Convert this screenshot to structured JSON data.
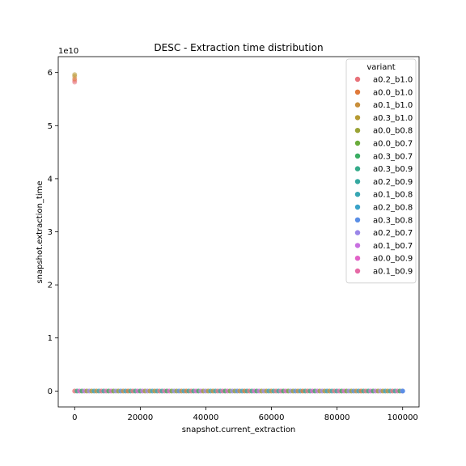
{
  "chart_data": {
    "type": "scatter",
    "title": "DESC - Extraction time distribution",
    "xlabel": "snapshot.current_extraction",
    "ylabel": "snapshot.extraction_time",
    "y_multiplier": "1e10",
    "xlim": [
      -5000,
      105000
    ],
    "ylim": [
      -0.3,
      6.3
    ],
    "x_ticks": [
      0,
      20000,
      40000,
      60000,
      80000,
      100000
    ],
    "x_tick_labels": [
      "0",
      "20000",
      "40000",
      "60000",
      "80000",
      "100000"
    ],
    "y_ticks": [
      0,
      1,
      2,
      3,
      4,
      5,
      6
    ],
    "y_tick_labels": [
      "0",
      "1",
      "2",
      "3",
      "4",
      "5",
      "6"
    ],
    "grid": false,
    "legend": {
      "title": "variant",
      "placement": "top-right"
    },
    "series": [
      {
        "name": "a0.2_b1.0",
        "color": "#e8727a",
        "outliers": [
          [
            0,
            5.82
          ],
          [
            0,
            5.85
          ]
        ]
      },
      {
        "name": "a0.0_b1.0",
        "color": "#e07a3a",
        "outliers": [
          [
            0,
            5.88
          ]
        ]
      },
      {
        "name": "a0.1_b1.0",
        "color": "#c98f3b",
        "outliers": [
          [
            0,
            5.93
          ]
        ]
      },
      {
        "name": "a0.3_b1.0",
        "color": "#b69a32",
        "outliers": [
          [
            0,
            5.96
          ]
        ]
      },
      {
        "name": "a0.0_b0.8",
        "color": "#9aa336",
        "outliers": []
      },
      {
        "name": "a0.0_b0.7",
        "color": "#6aac3c",
        "outliers": []
      },
      {
        "name": "a0.3_b0.7",
        "color": "#3aad62",
        "outliers": []
      },
      {
        "name": "a0.3_b0.9",
        "color": "#35ab8a",
        "outliers": []
      },
      {
        "name": "a0.2_b0.9",
        "color": "#35a8a0",
        "outliers": []
      },
      {
        "name": "a0.1_b0.8",
        "color": "#37a6b3",
        "outliers": []
      },
      {
        "name": "a0.2_b0.8",
        "color": "#3aa2c8",
        "outliers": []
      },
      {
        "name": "a0.3_b0.8",
        "color": "#5b8fe6",
        "outliers": []
      },
      {
        "name": "a0.2_b0.7",
        "color": "#9a86e8",
        "outliers": []
      },
      {
        "name": "a0.1_b0.7",
        "color": "#c870e0",
        "outliers": []
      },
      {
        "name": "a0.0_b0.9",
        "color": "#e262c8",
        "outliers": []
      },
      {
        "name": "a0.1_b0.9",
        "color": "#e66aa6",
        "outliers": []
      }
    ],
    "baseline": {
      "y": 0,
      "x_range": [
        0,
        100000
      ]
    }
  }
}
